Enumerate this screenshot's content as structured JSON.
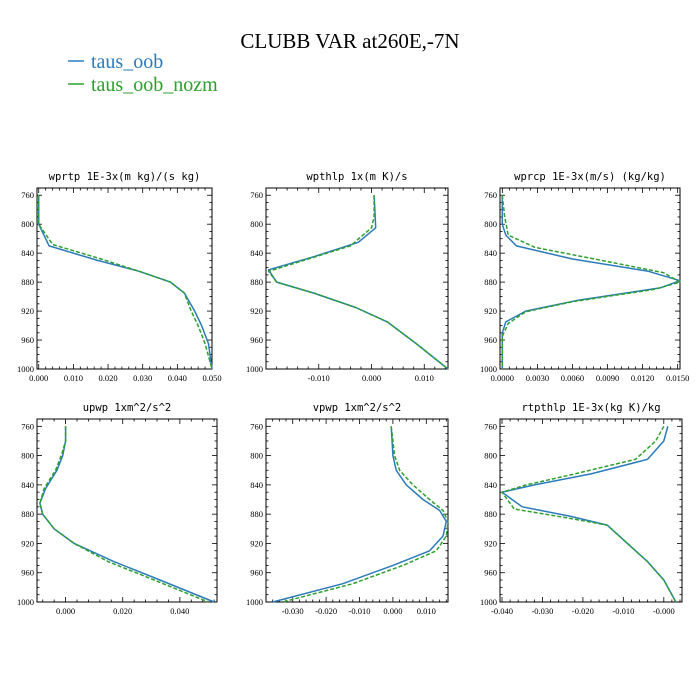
{
  "figure": {
    "title": "CLUBB VAR at260E,-7N",
    "legend": [
      {
        "name": "taus_oob",
        "color": "#2b7bba"
      },
      {
        "name": "taus_oob_nozm",
        "color": "#2ca02c"
      }
    ]
  },
  "chart_data": [
    {
      "type": "line",
      "title": "wprtp  1E-3x(m kg)/(s kg)",
      "xlim": [
        -0.0005,
        0.05
      ],
      "ylim": [
        1000,
        750
      ],
      "xticks": [
        0.0,
        0.01,
        0.02,
        0.03,
        0.04,
        0.05
      ],
      "xtick_labels": [
        "0.000",
        "0.010",
        "0.020",
        "0.030",
        "0.040",
        "0.050"
      ],
      "yticks": [
        760,
        800,
        840,
        880,
        920,
        960,
        1000
      ],
      "series": [
        {
          "name": "taus_oob",
          "points": [
            [
              0.0,
              760
            ],
            [
              0.0,
              800
            ],
            [
              0.003,
              830
            ],
            [
              0.017,
              850
            ],
            [
              0.029,
              865
            ],
            [
              0.038,
              880
            ],
            [
              0.042,
              895
            ],
            [
              0.045,
              920
            ],
            [
              0.047,
              940
            ],
            [
              0.049,
              965
            ],
            [
              0.05,
              1000
            ]
          ]
        },
        {
          "name": "taus_oob_nozm",
          "points": [
            [
              0.0,
              760
            ],
            [
              0.0,
              800
            ],
            [
              0.004,
              828
            ],
            [
              0.018,
              848
            ],
            [
              0.029,
              865
            ],
            [
              0.038,
              880
            ],
            [
              0.042,
              895
            ],
            [
              0.044,
              920
            ],
            [
              0.046,
              940
            ],
            [
              0.048,
              965
            ],
            [
              0.05,
              1000
            ]
          ]
        }
      ]
    },
    {
      "type": "line",
      "title": "wpthlp  1x(m K)/s",
      "xlim": [
        -0.02,
        0.0145
      ],
      "ylim": [
        1000,
        750
      ],
      "xticks": [
        -0.01,
        0.0,
        0.01
      ],
      "xtick_labels": [
        "-0.010",
        "0.000",
        "0.010"
      ],
      "yticks": [
        760,
        800,
        840,
        880,
        920,
        960,
        1000
      ],
      "series": [
        {
          "name": "taus_oob",
          "points": [
            [
              0.0005,
              760
            ],
            [
              0.0007,
              790
            ],
            [
              0.0008,
              805
            ],
            [
              -0.0025,
              825
            ],
            [
              -0.011,
              845
            ],
            [
              -0.0195,
              863
            ],
            [
              -0.018,
              880
            ],
            [
              -0.011,
              895
            ],
            [
              -0.003,
              915
            ],
            [
              0.003,
              935
            ],
            [
              0.0085,
              965
            ],
            [
              0.0145,
              1000
            ]
          ]
        },
        {
          "name": "taus_oob_nozm",
          "points": [
            [
              0.0005,
              760
            ],
            [
              0.0005,
              790
            ],
            [
              0.0,
              805
            ],
            [
              -0.004,
              830
            ],
            [
              -0.012,
              848
            ],
            [
              -0.0195,
              865
            ],
            [
              -0.018,
              880
            ],
            [
              -0.011,
              895
            ],
            [
              -0.003,
              915
            ],
            [
              0.003,
              935
            ],
            [
              0.0085,
              965
            ],
            [
              0.0145,
              1000
            ]
          ]
        }
      ]
    },
    {
      "type": "line",
      "title": "wprcp  1E-3x(m/s) (kg/kg)",
      "xlim": [
        -0.0002,
        0.0152
      ],
      "ylim": [
        1000,
        750
      ],
      "xticks": [
        0.0,
        0.003,
        0.006,
        0.009,
        0.012,
        0.015
      ],
      "xtick_labels": [
        "0.0000",
        "0.0030",
        "0.0060",
        "0.0090",
        "0.0120",
        "0.0150"
      ],
      "yticks": [
        760,
        800,
        840,
        880,
        920,
        960,
        1000
      ],
      "series": [
        {
          "name": "taus_oob",
          "points": [
            [
              0.0,
              760
            ],
            [
              0.0,
              800
            ],
            [
              0.0003,
              815
            ],
            [
              0.0012,
              830
            ],
            [
              0.006,
              848
            ],
            [
              0.0125,
              865
            ],
            [
              0.0152,
              878
            ],
            [
              0.0135,
              888
            ],
            [
              0.0065,
              905
            ],
            [
              0.002,
              920
            ],
            [
              0.0003,
              935
            ],
            [
              0.0,
              950
            ],
            [
              0.0,
              1000
            ]
          ]
        },
        {
          "name": "taus_oob_nozm",
          "points": [
            [
              0.0,
              760
            ],
            [
              0.0002,
              790
            ],
            [
              0.0005,
              815
            ],
            [
              0.0028,
              832
            ],
            [
              0.0085,
              850
            ],
            [
              0.0138,
              867
            ],
            [
              0.0152,
              880
            ],
            [
              0.013,
              890
            ],
            [
              0.006,
              907
            ],
            [
              0.002,
              921
            ],
            [
              0.0005,
              937
            ],
            [
              0.0,
              955
            ],
            [
              0.0,
              1000
            ]
          ]
        }
      ]
    },
    {
      "type": "line",
      "title": "upwp  1xm^2/s^2",
      "xlim": [
        -0.01,
        0.053
      ],
      "ylim": [
        1000,
        750
      ],
      "xticks": [
        0.0,
        0.02,
        0.04
      ],
      "xtick_labels": [
        "0.000",
        "0.020",
        "0.040"
      ],
      "yticks": [
        760,
        800,
        840,
        880,
        920,
        960,
        1000
      ],
      "series": [
        {
          "name": "taus_oob",
          "points": [
            [
              0.0,
              760
            ],
            [
              0.0,
              780
            ],
            [
              -0.001,
              800
            ],
            [
              -0.003,
              820
            ],
            [
              -0.007,
              845
            ],
            [
              -0.009,
              865
            ],
            [
              -0.008,
              880
            ],
            [
              -0.004,
              900
            ],
            [
              0.003,
              920
            ],
            [
              0.017,
              945
            ],
            [
              0.033,
              970
            ],
            [
              0.052,
              1000
            ]
          ]
        },
        {
          "name": "taus_oob_nozm",
          "points": [
            [
              0.0,
              760
            ],
            [
              0.0,
              780
            ],
            [
              -0.0015,
              800
            ],
            [
              -0.0035,
              820
            ],
            [
              -0.0075,
              845
            ],
            [
              -0.009,
              865
            ],
            [
              -0.008,
              880
            ],
            [
              -0.004,
              900
            ],
            [
              0.003,
              920
            ],
            [
              0.015,
              945
            ],
            [
              0.031,
              970
            ],
            [
              0.05,
              1000
            ]
          ]
        }
      ]
    },
    {
      "type": "line",
      "title": "vpwp  1xm^2/s^2",
      "xlim": [
        -0.038,
        0.0165
      ],
      "ylim": [
        1000,
        750
      ],
      "xticks": [
        -0.03,
        -0.02,
        -0.01,
        0.0,
        0.01
      ],
      "xtick_labels": [
        "-0.030",
        "-0.020",
        "-0.010",
        "0.000",
        "0.010"
      ],
      "yticks": [
        760,
        800,
        840,
        880,
        920,
        960,
        1000
      ],
      "series": [
        {
          "name": "taus_oob",
          "points": [
            [
              -0.0005,
              760
            ],
            [
              0.0,
              800
            ],
            [
              0.001,
              820
            ],
            [
              0.004,
              840
            ],
            [
              0.009,
              860
            ],
            [
              0.014,
              875
            ],
            [
              0.016,
              890
            ],
            [
              0.015,
              910
            ],
            [
              0.011,
              930
            ],
            [
              0.0,
              950
            ],
            [
              -0.015,
              975
            ],
            [
              -0.036,
              1000
            ]
          ]
        },
        {
          "name": "taus_oob_nozm",
          "points": [
            [
              -0.0005,
              760
            ],
            [
              0.0005,
              800
            ],
            [
              0.002,
              820
            ],
            [
              0.006,
              840
            ],
            [
              0.011,
              860
            ],
            [
              0.015,
              875
            ],
            [
              0.0165,
              890
            ],
            [
              0.016,
              910
            ],
            [
              0.013,
              930
            ],
            [
              0.003,
              950
            ],
            [
              -0.012,
              975
            ],
            [
              -0.033,
              1000
            ]
          ]
        }
      ]
    },
    {
      "type": "line",
      "title": "rtpthlp  1E-3x(kg K)/kg",
      "xlim": [
        -0.0405,
        0.0045
      ],
      "ylim": [
        1000,
        750
      ],
      "xticks": [
        -0.04,
        -0.03,
        -0.02,
        -0.01,
        0.0
      ],
      "xtick_labels": [
        "-0.040",
        "-0.030",
        "-0.020",
        "-0.010",
        "-0.000"
      ],
      "yticks": [
        760,
        800,
        840,
        880,
        920,
        960,
        1000
      ],
      "series": [
        {
          "name": "taus_oob",
          "points": [
            [
              0.001,
              760
            ],
            [
              0.0,
              780
            ],
            [
              -0.004,
              805
            ],
            [
              -0.018,
              825
            ],
            [
              -0.032,
              840
            ],
            [
              -0.04,
              850
            ],
            [
              -0.035,
              870
            ],
            [
              -0.023,
              883
            ],
            [
              -0.014,
              895
            ],
            [
              -0.009,
              920
            ],
            [
              -0.004,
              945
            ],
            [
              0.0,
              970
            ],
            [
              0.003,
              1000
            ]
          ]
        },
        {
          "name": "taus_oob_nozm",
          "points": [
            [
              0.0,
              760
            ],
            [
              -0.002,
              780
            ],
            [
              -0.007,
              805
            ],
            [
              -0.022,
              825
            ],
            [
              -0.034,
              840
            ],
            [
              -0.04,
              850
            ],
            [
              -0.037,
              873
            ],
            [
              -0.024,
              885
            ],
            [
              -0.014,
              895
            ],
            [
              -0.009,
              920
            ],
            [
              -0.004,
              945
            ],
            [
              0.0,
              970
            ],
            [
              0.003,
              1000
            ]
          ]
        }
      ]
    }
  ]
}
